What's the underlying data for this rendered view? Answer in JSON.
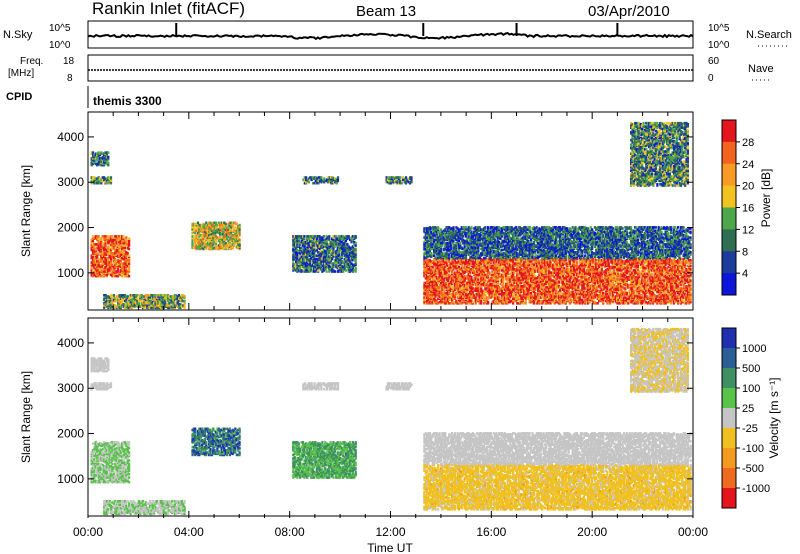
{
  "header": {
    "station": "Rankin Inlet (fitACF)",
    "beam": "Beam 13",
    "date": "03/Apr/2010"
  },
  "noise_panel": {
    "left_label": "N.Sky",
    "right_label": "N.Search",
    "left_ticks": [
      "10^5",
      "10^0"
    ],
    "right_ticks": [
      "10^5",
      "10^0"
    ]
  },
  "freq_panel": {
    "left_label_line1": "Freq.",
    "left_label_line2": "[MHz]",
    "left_ticks": [
      "18",
      "8"
    ],
    "right_label": "Nave",
    "right_ticks": [
      "60",
      "0"
    ]
  },
  "cpid": {
    "label": "CPID",
    "value": "themis 3300"
  },
  "colors": {
    "power": [
      "#0b16d8",
      "#1c3c9c",
      "#2f6e53",
      "#4ea64b",
      "#f1c321",
      "#f79a26",
      "#f2641f",
      "#e5151e"
    ],
    "velocity": [
      "#1f2fb0",
      "#2a5f95",
      "#3f8f62",
      "#58c24a",
      "#c5c5c5",
      "#f0c020",
      "#f39b1f",
      "#ee6a1e",
      "#e5151e"
    ]
  },
  "chart_data": [
    {
      "type": "heatmap",
      "name": "power-panel",
      "ylabel": "Slant Range [km]",
      "yticks": [
        "1000",
        "2000",
        "3000",
        "4000"
      ],
      "ylim": [
        180,
        4550
      ],
      "xlim": [
        0,
        24
      ],
      "colorbar": {
        "label": "Power [dB]",
        "ticks": [
          "4",
          "8",
          "12",
          "16",
          "20",
          "24",
          "28"
        ],
        "range": [
          0,
          32
        ]
      },
      "regions": [
        {
          "t0": 0.1,
          "t1": 1.6,
          "r0": 900,
          "r1": 1800,
          "value": 26
        },
        {
          "t0": 0.1,
          "t1": 0.8,
          "r0": 3350,
          "r1": 3650,
          "value": 9
        },
        {
          "t0": 0.1,
          "t1": 0.9,
          "r0": 2950,
          "r1": 3100,
          "value": 12
        },
        {
          "t0": 0.6,
          "t1": 3.8,
          "r0": 200,
          "r1": 500,
          "value": 14
        },
        {
          "t0": 4.1,
          "t1": 6.0,
          "r0": 1500,
          "r1": 2100,
          "value": 18
        },
        {
          "t0": 8.1,
          "t1": 10.6,
          "r0": 1000,
          "r1": 1800,
          "value": 9
        },
        {
          "t0": 8.5,
          "t1": 9.9,
          "r0": 2950,
          "r1": 3100,
          "value": 10
        },
        {
          "t0": 11.8,
          "t1": 12.8,
          "r0": 2950,
          "r1": 3100,
          "value": 10
        },
        {
          "t0": 13.3,
          "t1": 23.9,
          "r0": 300,
          "r1": 1300,
          "value": 27
        },
        {
          "t0": 13.3,
          "t1": 23.9,
          "r0": 1300,
          "r1": 2000,
          "value": 8
        },
        {
          "t0": 21.5,
          "t1": 23.8,
          "r0": 2900,
          "r1": 4300,
          "value": 11
        }
      ]
    },
    {
      "type": "heatmap",
      "name": "velocity-panel",
      "ylabel": "Slant Range [km]",
      "yticks": [
        "1000",
        "2000",
        "3000",
        "4000"
      ],
      "ylim": [
        180,
        4550
      ],
      "xlim": [
        0,
        24
      ],
      "xticks": [
        "00:00",
        "04:00",
        "08:00",
        "12:00",
        "16:00",
        "20:00",
        "00:00"
      ],
      "xlabel": "Time UT",
      "colorbar": {
        "label": "Velocity [m s⁻¹]",
        "ticks": [
          "1000",
          "500",
          "100",
          "25",
          "-25",
          "-100",
          "-500",
          "-1000"
        ],
        "range": [
          -1200,
          1200
        ]
      },
      "regions": [
        {
          "t0": 0.1,
          "t1": 1.6,
          "r0": 900,
          "r1": 1800,
          "value": 150
        },
        {
          "t0": 0.1,
          "t1": 0.8,
          "r0": 3350,
          "r1": 3650,
          "value": 0
        },
        {
          "t0": 0.1,
          "t1": 0.9,
          "r0": 2950,
          "r1": 3100,
          "value": 0
        },
        {
          "t0": 0.6,
          "t1": 3.8,
          "r0": 200,
          "r1": 500,
          "value": 120
        },
        {
          "t0": 4.1,
          "t1": 6.0,
          "r0": 1500,
          "r1": 2100,
          "value": 700
        },
        {
          "t0": 8.1,
          "t1": 10.6,
          "r0": 1000,
          "r1": 1800,
          "value": 400
        },
        {
          "t0": 8.5,
          "t1": 9.9,
          "r0": 2950,
          "r1": 3100,
          "value": 0
        },
        {
          "t0": 11.8,
          "t1": 12.8,
          "r0": 2950,
          "r1": 3100,
          "value": 0
        },
        {
          "t0": 13.3,
          "t1": 23.9,
          "r0": 300,
          "r1": 1300,
          "value": -250
        },
        {
          "t0": 13.3,
          "t1": 23.9,
          "r0": 1300,
          "r1": 2000,
          "value": 0
        },
        {
          "t0": 21.5,
          "t1": 23.8,
          "r0": 2900,
          "r1": 4300,
          "value": -120
        }
      ]
    }
  ]
}
